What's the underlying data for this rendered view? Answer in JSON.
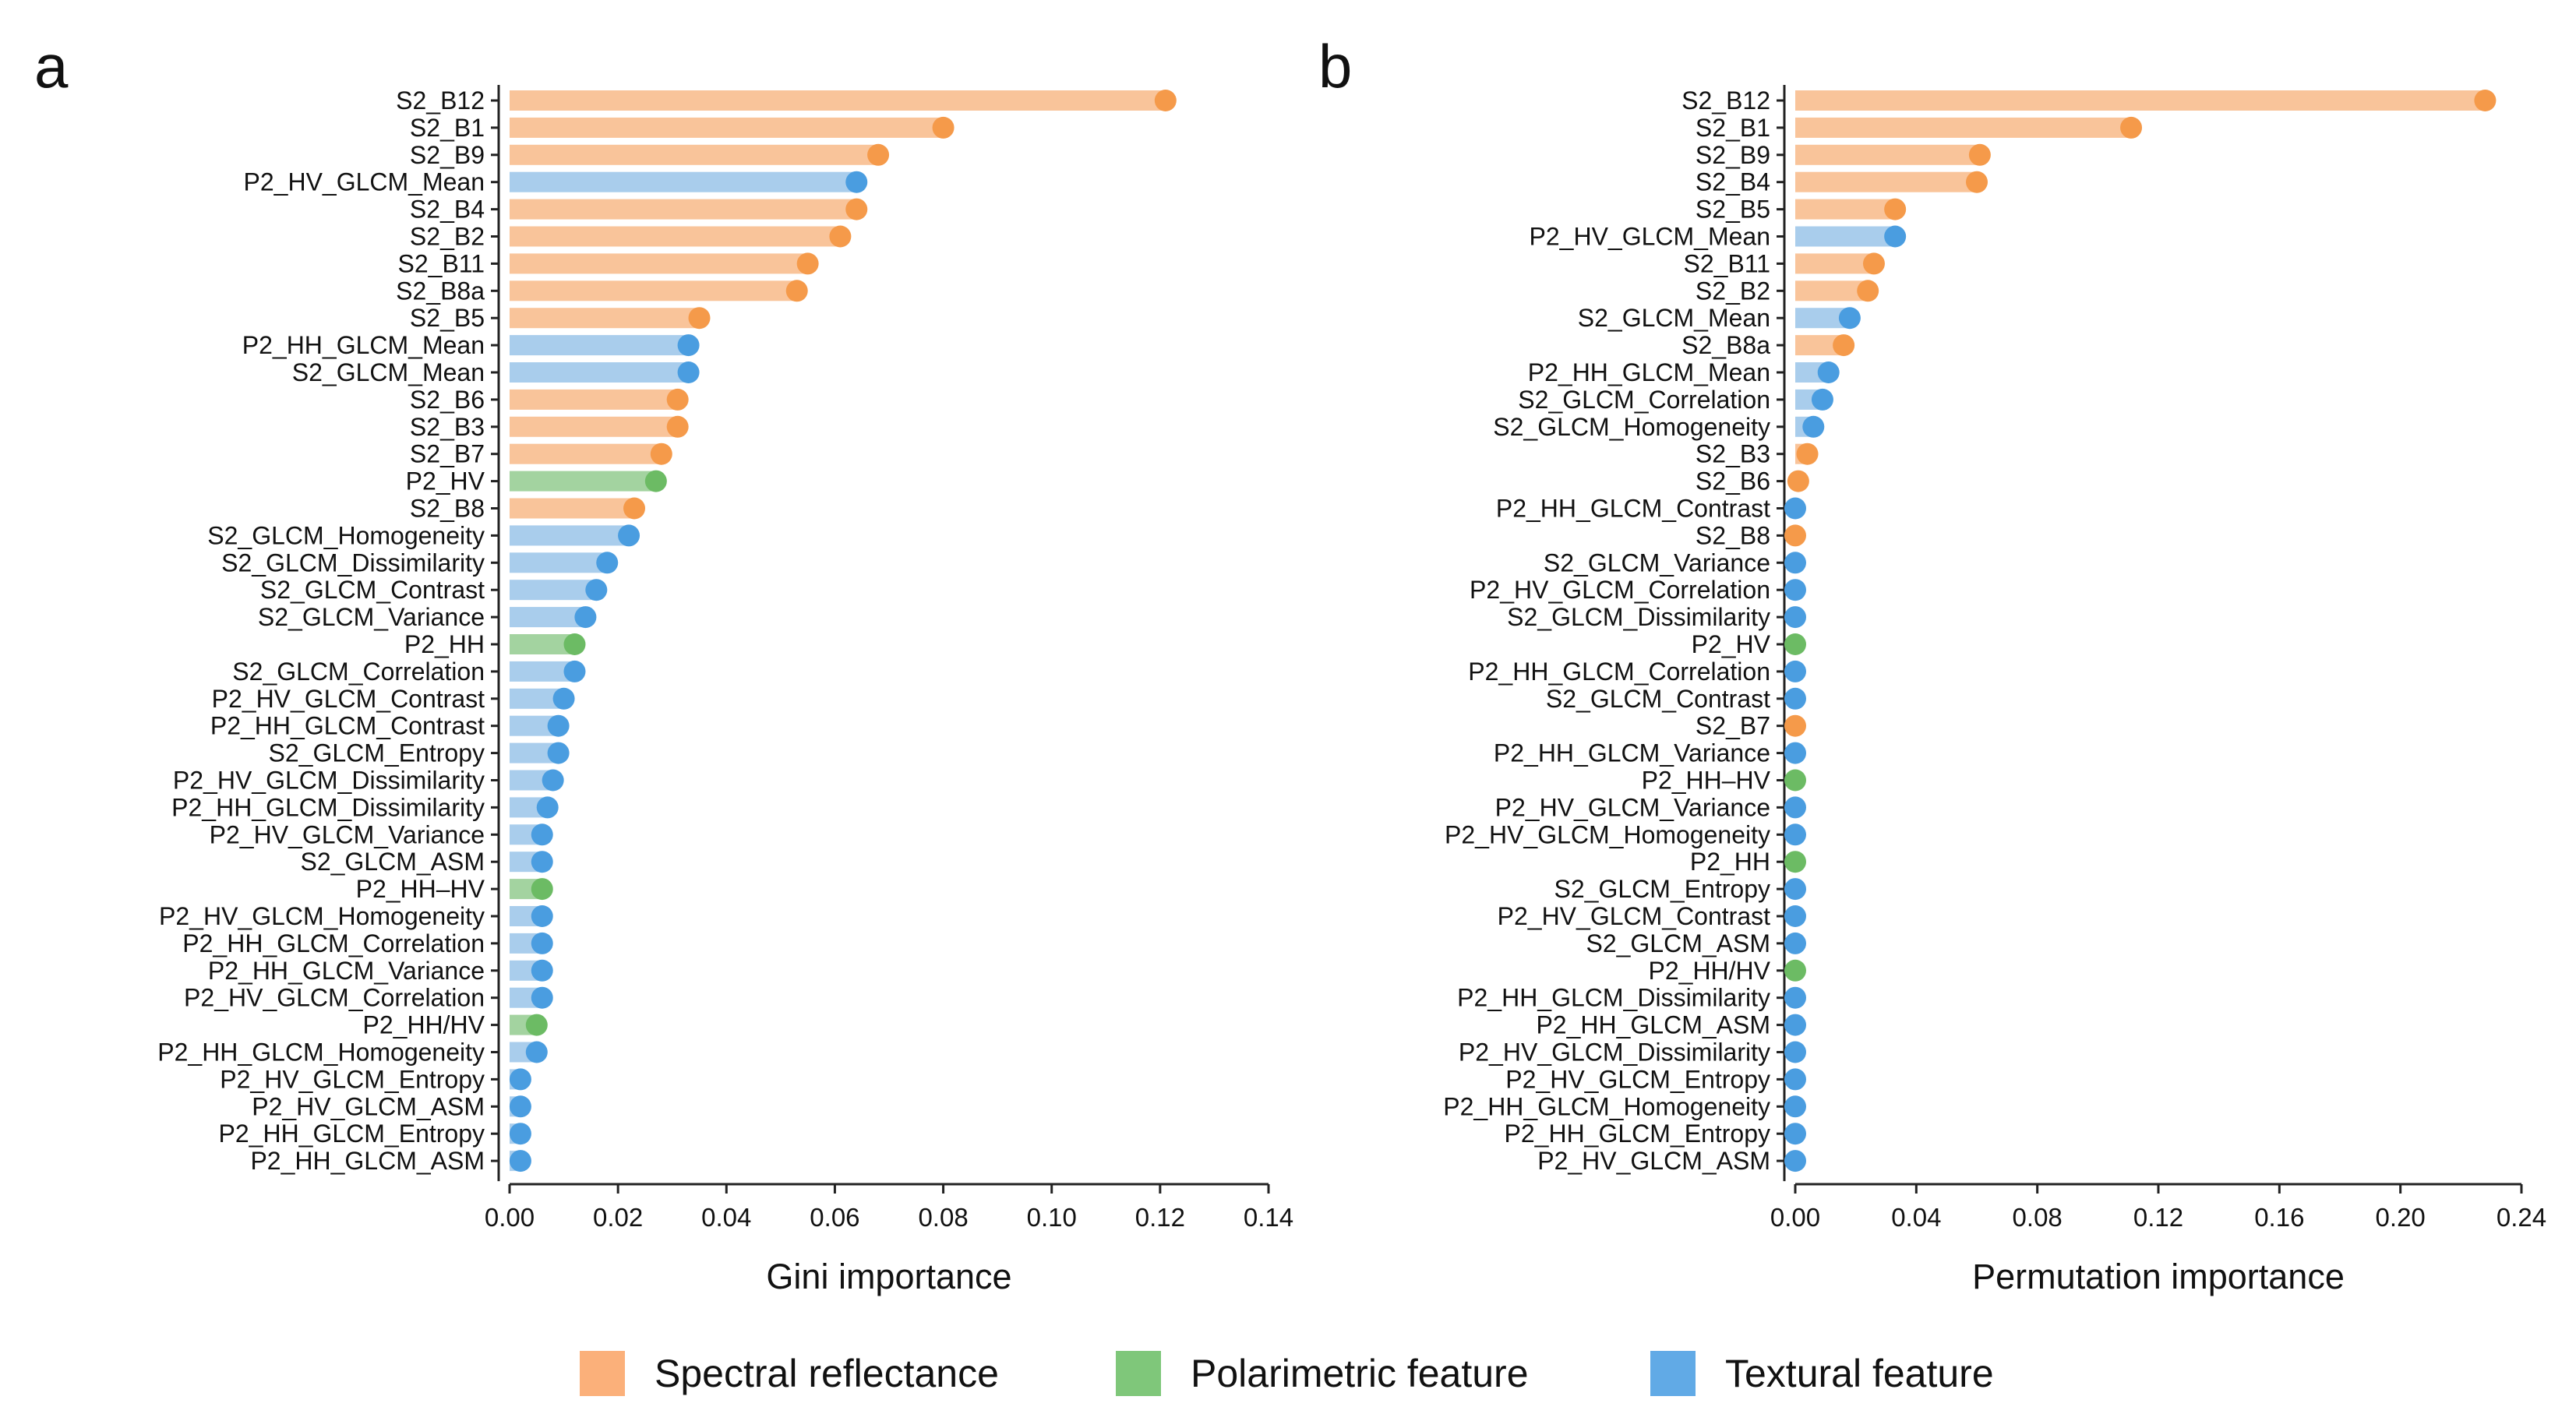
{
  "colors": {
    "spectral_bar": "#f9c49a",
    "spectral_dot": "#f59a4a",
    "polarimetric_bar": "#a3d3a0",
    "polarimetric_dot": "#6cbb64",
    "textural_bar": "#a9cdec",
    "textural_dot": "#4a9de0",
    "legend_spectral": "#fbb07a",
    "legend_polarimetric": "#7fc77a",
    "legend_textural": "#61aae6"
  },
  "legend": [
    {
      "key": "spectral",
      "label": "Spectral reflectance"
    },
    {
      "key": "polarimetric",
      "label": "Polarimetric feature"
    },
    {
      "key": "textural",
      "label": "Textural feature"
    }
  ],
  "chart_data": [
    {
      "type": "bar",
      "panel": "a",
      "xlabel": "Gini importance",
      "xlim": [
        0,
        0.14
      ],
      "xticks": [
        "0.00",
        "0.02",
        "0.04",
        "0.06",
        "0.08",
        "0.10",
        "0.12",
        "0.14"
      ],
      "categories": [
        "S2_B12",
        "S2_B1",
        "S2_B9",
        "P2_HV_GLCM_Mean",
        "S2_B4",
        "S2_B2",
        "S2_B11",
        "S2_B8a",
        "S2_B5",
        "P2_HH_GLCM_Mean",
        "S2_GLCM_Mean",
        "S2_B6",
        "S2_B3",
        "S2_B7",
        "P2_HV",
        "S2_B8",
        "S2_GLCM_Homogeneity",
        "S2_GLCM_Dissimilarity",
        "S2_GLCM_Contrast",
        "S2_GLCM_Variance",
        "P2_HH",
        "S2_GLCM_Correlation",
        "P2_HV_GLCM_Contrast",
        "P2_HH_GLCM_Contrast",
        "S2_GLCM_Entropy",
        "P2_HV_GLCM_Dissimilarity",
        "P2_HH_GLCM_Dissimilarity",
        "P2_HV_GLCM_Variance",
        "S2_GLCM_ASM",
        "P2_HH–HV",
        "P2_HV_GLCM_Homogeneity",
        "P2_HH_GLCM_Correlation",
        "P2_HH_GLCM_Variance",
        "P2_HV_GLCM_Correlation",
        "P2_HH/HV",
        "P2_HH_GLCM_Homogeneity",
        "P2_HV_GLCM_Entropy",
        "P2_HV_GLCM_ASM",
        "P2_HH_GLCM_Entropy",
        "P2_HH_GLCM_ASM"
      ],
      "values": [
        0.121,
        0.08,
        0.068,
        0.064,
        0.064,
        0.061,
        0.055,
        0.053,
        0.035,
        0.033,
        0.033,
        0.031,
        0.031,
        0.028,
        0.027,
        0.023,
        0.022,
        0.018,
        0.016,
        0.014,
        0.012,
        0.012,
        0.01,
        0.009,
        0.009,
        0.008,
        0.007,
        0.006,
        0.006,
        0.006,
        0.006,
        0.006,
        0.006,
        0.006,
        0.005,
        0.005,
        0.002,
        0.002,
        0.002,
        0.002
      ],
      "groups": [
        "spectral",
        "spectral",
        "spectral",
        "textural",
        "spectral",
        "spectral",
        "spectral",
        "spectral",
        "spectral",
        "textural",
        "textural",
        "spectral",
        "spectral",
        "spectral",
        "polarimetric",
        "spectral",
        "textural",
        "textural",
        "textural",
        "textural",
        "polarimetric",
        "textural",
        "textural",
        "textural",
        "textural",
        "textural",
        "textural",
        "textural",
        "textural",
        "polarimetric",
        "textural",
        "textural",
        "textural",
        "textural",
        "polarimetric",
        "textural",
        "textural",
        "textural",
        "textural",
        "textural"
      ]
    },
    {
      "type": "bar",
      "panel": "b",
      "xlabel": "Permutation importance",
      "xlim": [
        0,
        0.24
      ],
      "xticks": [
        "0.00",
        "0.04",
        "0.08",
        "0.12",
        "0.16",
        "0.20",
        "0.24"
      ],
      "categories": [
        "S2_B12",
        "S2_B1",
        "S2_B9",
        "S2_B4",
        "S2_B5",
        "P2_HV_GLCM_Mean",
        "S2_B11",
        "S2_B2",
        "S2_GLCM_Mean",
        "S2_B8a",
        "P2_HH_GLCM_Mean",
        "S2_GLCM_Correlation",
        "S2_GLCM_Homogeneity",
        "S2_B3",
        "S2_B6",
        "P2_HH_GLCM_Contrast",
        "S2_B8",
        "S2_GLCM_Variance",
        "P2_HV_GLCM_Correlation",
        "S2_GLCM_Dissimilarity",
        "P2_HV",
        "P2_HH_GLCM_Correlation",
        "S2_GLCM_Contrast",
        "S2_B7",
        "P2_HH_GLCM_Variance",
        "P2_HH–HV",
        "P2_HV_GLCM_Variance",
        "P2_HV_GLCM_Homogeneity",
        "P2_HH",
        "S2_GLCM_Entropy",
        "P2_HV_GLCM_Contrast",
        "S2_GLCM_ASM",
        "P2_HH/HV",
        "P2_HH_GLCM_Dissimilarity",
        "P2_HH_GLCM_ASM",
        "P2_HV_GLCM_Dissimilarity",
        "P2_HV_GLCM_Entropy",
        "P2_HH_GLCM_Homogeneity",
        "P2_HH_GLCM_Entropy",
        "P2_HV_GLCM_ASM"
      ],
      "values": [
        0.228,
        0.111,
        0.061,
        0.06,
        0.033,
        0.033,
        0.026,
        0.024,
        0.018,
        0.016,
        0.011,
        0.009,
        0.006,
        0.004,
        0.001,
        0.0,
        0.0,
        0.0,
        0.0,
        0.0,
        0.0,
        0.0,
        0.0,
        0.0,
        0.0,
        0.0,
        0.0,
        0.0,
        0.0,
        0.0,
        0.0,
        0.0,
        0.0,
        0.0,
        0.0,
        0.0,
        0.0,
        0.0,
        0.0,
        0.0
      ],
      "groups": [
        "spectral",
        "spectral",
        "spectral",
        "spectral",
        "spectral",
        "textural",
        "spectral",
        "spectral",
        "textural",
        "spectral",
        "textural",
        "textural",
        "textural",
        "spectral",
        "spectral",
        "textural",
        "spectral",
        "textural",
        "textural",
        "textural",
        "polarimetric",
        "textural",
        "textural",
        "spectral",
        "textural",
        "polarimetric",
        "textural",
        "textural",
        "polarimetric",
        "textural",
        "textural",
        "textural",
        "polarimetric",
        "textural",
        "textural",
        "textural",
        "textural",
        "textural",
        "textural",
        "textural"
      ]
    }
  ]
}
